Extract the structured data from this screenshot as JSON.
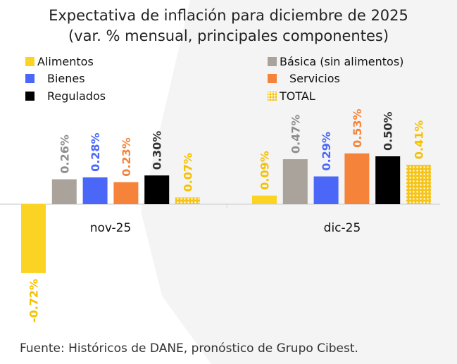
{
  "chart_data": {
    "type": "bar",
    "title": "Expectativa de inflación para diciembre de 2025",
    "subtitle": "(var. % mensual, principales componentes)",
    "categories": [
      "nov-25",
      "dic-25"
    ],
    "series": [
      {
        "name": "Alimentos",
        "color": "#FBD423",
        "label_color": "#F5C000",
        "values": [
          -0.72,
          0.09
        ],
        "labels": [
          "-0.72%",
          "0.09%"
        ]
      },
      {
        "name": "Básica (sin alimentos)",
        "color": "#A9A39C",
        "label_color": "#8E8E8E",
        "values": [
          0.26,
          0.47
        ],
        "labels": [
          "0.26%",
          "0.47%"
        ]
      },
      {
        "name": "Bienes",
        "color": "#4A67F8",
        "label_color": "#4A67F8",
        "values": [
          0.28,
          0.29
        ],
        "labels": [
          "0.28%",
          "0.29%"
        ]
      },
      {
        "name": "Servicios",
        "color": "#F5843A",
        "label_color": "#F5843A",
        "values": [
          0.23,
          0.53
        ],
        "labels": [
          "0.23%",
          "0.53%"
        ]
      },
      {
        "name": "Regulados",
        "color": "#000000",
        "label_color": "#333333",
        "values": [
          0.3,
          0.5
        ],
        "labels": [
          "0.30%",
          "0.50%"
        ]
      },
      {
        "name": "TOTAL",
        "color": "#F6C419",
        "label_color": "#F5C000",
        "pattern": "hatched",
        "values": [
          0.07,
          0.41
        ],
        "labels": [
          "0.07%",
          "0.41%"
        ]
      }
    ],
    "ylim": [
      -0.72,
      0.53
    ],
    "grid": false,
    "legend_position": "top"
  },
  "source": "Fuente: Históricos de DANE, pronóstico de Grupo Cibest."
}
